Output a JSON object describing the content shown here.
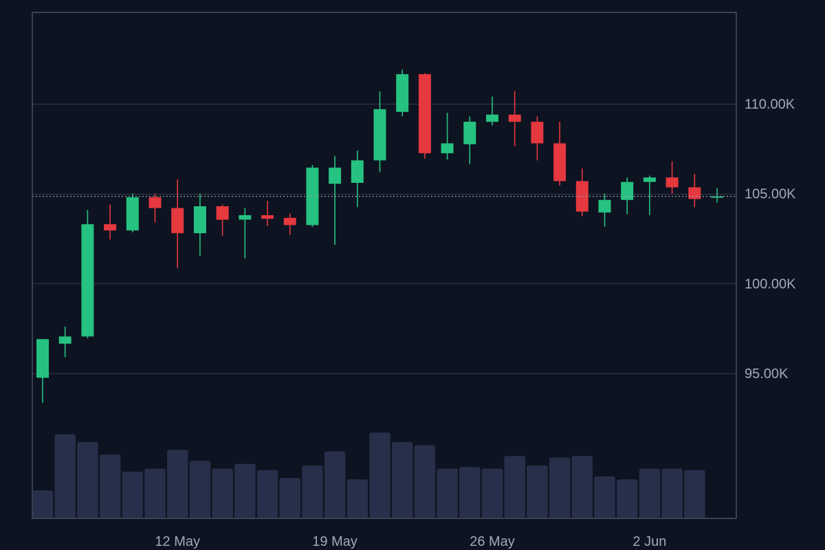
{
  "chart_data": {
    "type": "candlestick",
    "x": [
      "2025-05-06",
      "2025-05-07",
      "2025-05-08",
      "2025-05-09",
      "2025-05-10",
      "2025-05-11",
      "2025-05-12",
      "2025-05-13",
      "2025-05-14",
      "2025-05-15",
      "2025-05-16",
      "2025-05-17",
      "2025-05-18",
      "2025-05-19",
      "2025-05-20",
      "2025-05-21",
      "2025-05-22",
      "2025-05-23",
      "2025-05-24",
      "2025-05-25",
      "2025-05-26",
      "2025-05-27",
      "2025-05-28",
      "2025-05-29",
      "2025-05-30",
      "2025-05-31",
      "2025-06-01",
      "2025-06-02",
      "2025-06-03",
      "2025-06-04",
      "2025-06-05"
    ],
    "open": [
      94750,
      96650,
      97050,
      103300,
      102950,
      104800,
      104200,
      102800,
      104300,
      103550,
      103800,
      103650,
      103250,
      105550,
      105600,
      106850,
      109550,
      111650,
      107250,
      107750,
      109000,
      109400,
      109000,
      107800,
      105700,
      103950,
      104650,
      105650,
      105900,
      105350,
      104800
    ],
    "high": [
      96900,
      97600,
      104100,
      104400,
      105000,
      105000,
      105800,
      105000,
      104400,
      104200,
      104600,
      103900,
      106600,
      107100,
      107400,
      110700,
      111900,
      111700,
      109500,
      109300,
      110400,
      110700,
      109300,
      109000,
      106400,
      105000,
      105900,
      106000,
      106800,
      106100,
      105300
    ],
    "low": [
      93350,
      95900,
      96950,
      102450,
      102850,
      103400,
      100850,
      101550,
      102650,
      101400,
      103200,
      102700,
      103150,
      102150,
      104250,
      106200,
      109300,
      106950,
      106900,
      106650,
      108800,
      107650,
      106850,
      105450,
      103750,
      103150,
      103850,
      103800,
      105000,
      104250,
      104500
    ],
    "close": [
      96900,
      97050,
      103300,
      102950,
      104800,
      104200,
      102800,
      104300,
      103550,
      103800,
      103600,
      103250,
      106450,
      106450,
      106850,
      109700,
      111650,
      107250,
      107800,
      109000,
      109400,
      109000,
      107800,
      105700,
      104000,
      104650,
      105650,
      105900,
      105350,
      104700,
      104850
    ],
    "volume": [
      18,
      54,
      49,
      41,
      30,
      32,
      44,
      37,
      32,
      35,
      31,
      26,
      34,
      43,
      25,
      55,
      49,
      47,
      32,
      33,
      32,
      40,
      34,
      39,
      40,
      27,
      25,
      32,
      32,
      31,
      null
    ],
    "price_axis": {
      "position": "right",
      "ticks": [
        95000,
        100000,
        105000,
        110000
      ],
      "tick_labels": [
        "95.00K",
        "100.00K",
        "105.00K",
        "110.00K"
      ],
      "range": [
        92000,
        115000
      ]
    },
    "time_axis": {
      "ticks": [
        "2025-05-12",
        "2025-05-19",
        "2025-05-26",
        "2025-06-02"
      ],
      "tick_labels": [
        "12 May",
        "19 May",
        "26 May",
        "2 Jun"
      ]
    },
    "volume_range": [
      0,
      60
    ],
    "current_price_line": 104850,
    "grid": "horizontal",
    "colors": {
      "background": "#0d1320",
      "up": "#26c281",
      "down": "#e5383f",
      "volume": "#272f4a",
      "grid": "#2a3240",
      "axis": "#3a4150",
      "text": "#a3a9b8",
      "price_line": "#9aa1ae"
    }
  }
}
